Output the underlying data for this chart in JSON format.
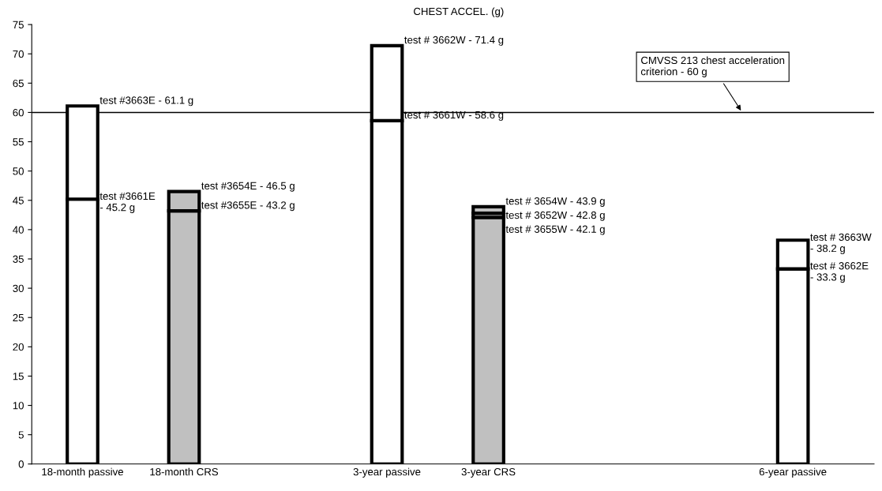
{
  "chart_data": {
    "type": "bar",
    "title": "CHEST ACCEL. (g)",
    "stacked": true,
    "categories": [
      "18-month passive",
      "18-month CRS",
      null,
      "3-year passive",
      "3-year CRS",
      null,
      null,
      "6-year passive"
    ],
    "series": [
      {
        "values": [
          45.2,
          43.2,
          null,
          58.6,
          42.1,
          null,
          null,
          33.3
        ],
        "colors": [
          "#ffffff",
          "#c0c0c0",
          "#ffffff",
          "#ffffff",
          "#c0c0c0",
          "#ffffff",
          "#ffffff",
          "#ffffff"
        ]
      },
      {
        "values": [
          15.9,
          3.3,
          null,
          12.8,
          0.7,
          null,
          null,
          4.9
        ],
        "colors": [
          "#ffffff",
          "#c0c0c0",
          "#ffffff",
          "#ffffff",
          "#c0c0c0",
          "#ffffff",
          "#ffffff",
          "#ffffff"
        ]
      },
      {
        "values": [
          null,
          null,
          null,
          null,
          1.1,
          null,
          null,
          null
        ],
        "colors": [
          "#ffffff",
          "#c0c0c0",
          "#ffffff",
          "#ffffff",
          "#c0c0c0",
          "#ffffff",
          "#ffffff",
          "#ffffff"
        ]
      }
    ],
    "annotations": [
      {
        "text": "test #3663E - 61.1 g",
        "x": "18-month passive",
        "y": 61.1
      },
      {
        "text": "test #3661E\n- 45.2 g",
        "x": "18-month passive",
        "y": 45.2
      },
      {
        "text": "test #3654E - 46.5 g",
        "x": "18-month CRS",
        "y": 46.5
      },
      {
        "text": "test #3655E - 43.2 g",
        "x": "18-month CRS",
        "y": 43.2
      },
      {
        "text": "test # 3662W - 71.4 g",
        "x": "3-year passive",
        "y": 71.4
      },
      {
        "text": "test # 3661W - 58.6 g",
        "x": "3-year passive",
        "y": 58.6
      },
      {
        "text": "test # 3654W - 43.9 g",
        "x": "3-year CRS",
        "y": 43.9
      },
      {
        "text": "test # 3652W - 42.8 g",
        "x": "3-year CRS",
        "y": 42.8
      },
      {
        "text": "test # 3655W - 42.1 g",
        "x": "3-year CRS",
        "y": 42.1
      },
      {
        "text": "test # 3663W\n- 38.2 g",
        "x": "6-year passive",
        "y": 38.2
      },
      {
        "text": "test # 3662E\n- 33.3 g",
        "x": "6-year passive",
        "y": 33.3
      }
    ],
    "ylim": [
      0,
      75
    ],
    "yticks": [
      0,
      5,
      10,
      15,
      20,
      25,
      30,
      35,
      40,
      45,
      50,
      55,
      60,
      65,
      70,
      75
    ],
    "ref_lines": [
      {
        "axis": "y",
        "value": 60,
        "label": "CMVSS 213 chest acceleration\ncriterion - 60 g",
        "color": "#000000"
      }
    ],
    "grid": false,
    "legend": false
  }
}
